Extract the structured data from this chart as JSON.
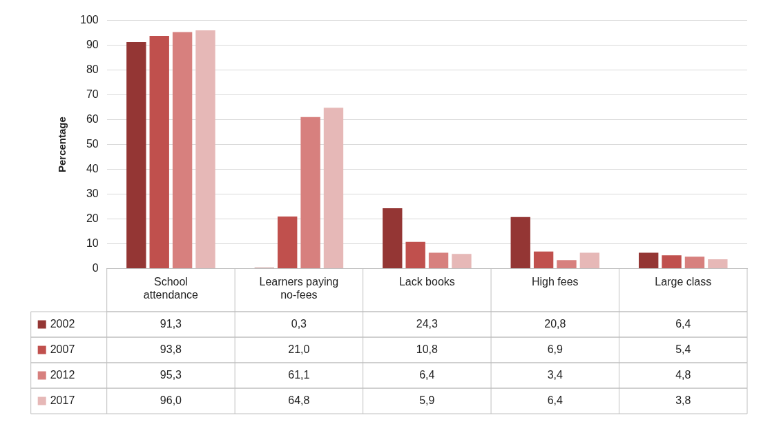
{
  "chart_data": {
    "type": "bar",
    "ylabel": "Percentage",
    "categories": [
      "School attendance",
      "Learners paying no-fees",
      "Lack books",
      "High fees",
      "Large class"
    ],
    "ylim": [
      0,
      100
    ],
    "yticks": [
      0,
      10,
      20,
      30,
      40,
      50,
      60,
      70,
      80,
      90,
      100
    ],
    "grid": "y",
    "legend": "bottom left",
    "series": [
      {
        "name": "2002",
        "color": "#943634",
        "values": [
          91.3,
          0.3,
          24.3,
          20.8,
          6.4
        ],
        "value_labels": [
          "91,3",
          "0,3",
          "24,3",
          "20,8",
          "6,4"
        ]
      },
      {
        "name": "2007",
        "color": "#c0504d",
        "values": [
          93.8,
          21.0,
          10.8,
          6.9,
          5.4
        ],
        "value_labels": [
          "93,8",
          "21,0",
          "10,8",
          "6,9",
          "5,4"
        ]
      },
      {
        "name": "2012",
        "color": "#d7807e",
        "values": [
          95.3,
          61.1,
          6.4,
          3.4,
          4.8
        ],
        "value_labels": [
          "95,3",
          "61,1",
          "6,4",
          "3,4",
          "4,8"
        ]
      },
      {
        "name": "2017",
        "color": "#e6b8b7",
        "values": [
          96.0,
          64.8,
          5.9,
          6.4,
          3.8
        ],
        "value_labels": [
          "96,0",
          "64,8",
          "5,9",
          "6,4",
          "3,8"
        ]
      }
    ]
  }
}
